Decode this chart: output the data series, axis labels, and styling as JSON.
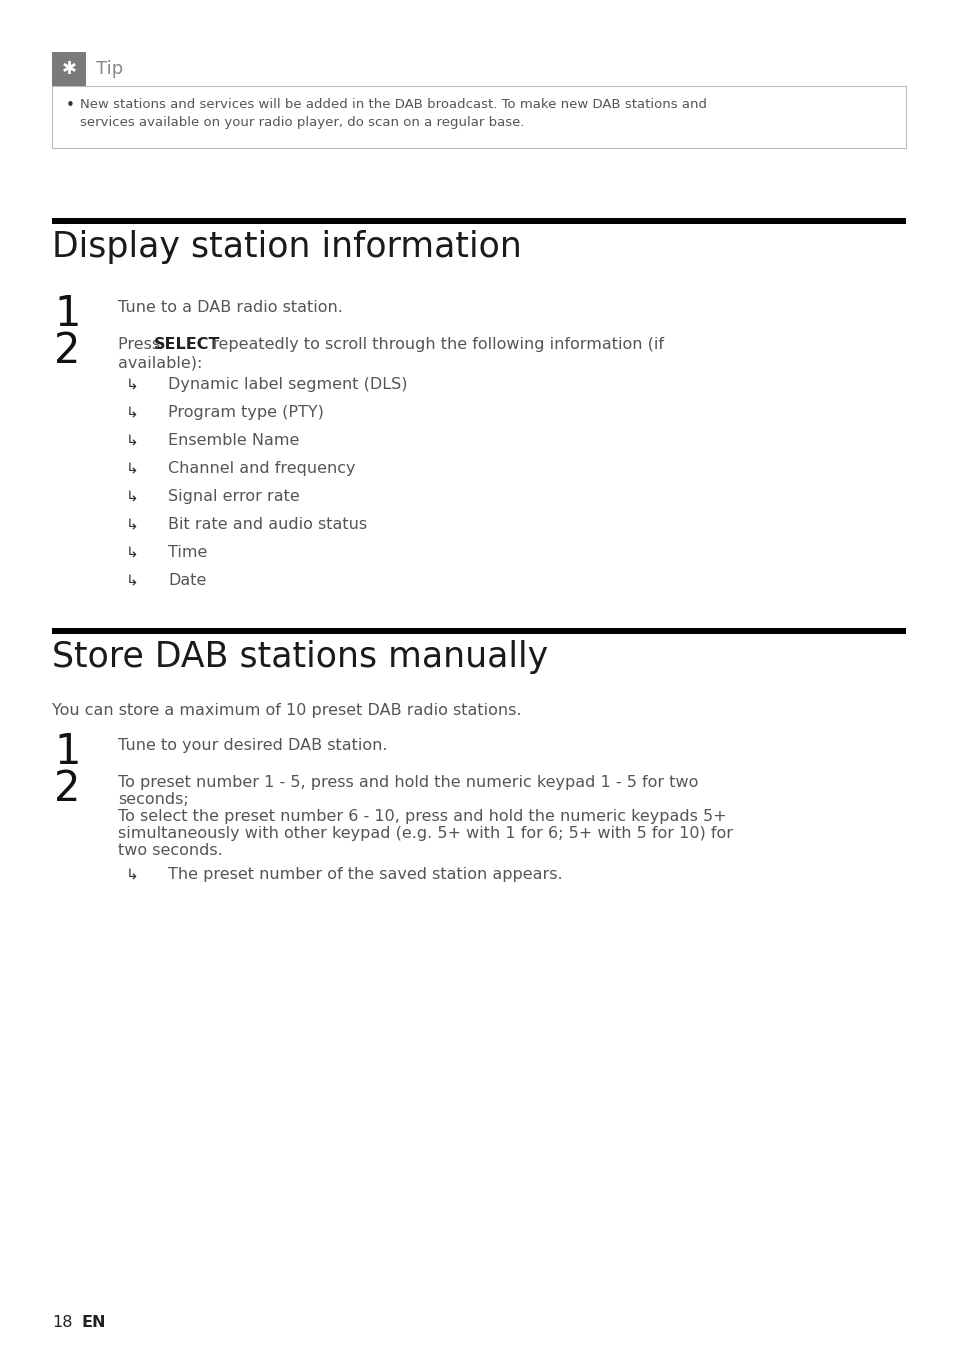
{
  "bg_color": "#ffffff",
  "tip_icon_bg": "#7a7a7a",
  "tip_border_color": "#bbbbbb",
  "tip_bullet": "New stations and services will be added in the DAB broadcast. To make new DAB stations and\nservices available on your radio player, do scan on a regular base.",
  "section1_title": "Display station information",
  "section1_step1": "Tune to a DAB radio station.",
  "section1_step2_line1_pre": "Press ",
  "section1_step2_bold": "SELECT",
  "section1_step2_line1_post": " repeatedly to scroll through the following information (if",
  "section1_step2_line2": "available):",
  "section1_bullets": [
    "Dynamic label segment (DLS)",
    "Program type (PTY)",
    "Ensemble Name",
    "Channel and frequency",
    "Signal error rate",
    "Bit rate and audio status",
    "Time",
    "Date"
  ],
  "section2_title": "Store DAB stations manually",
  "section2_intro": "You can store a maximum of 10 preset DAB radio stations.",
  "section2_step1": "Tune to your desired DAB station.",
  "section2_step2_line1": "To preset number 1 - 5, press and hold the numeric keypad 1 - 5 for two",
  "section2_step2_line2": "seconds;",
  "section2_step2_line3": "To select the preset number 6 - 10, press and hold the numeric keypads 5+",
  "section2_step2_line4": "simultaneously with other keypad (e.g. 5+ with 1 for 6; 5+ with 5 for 10) for",
  "section2_step2_line5": "two seconds.",
  "section2_result": "The preset number of the saved station appears.",
  "footer_page": "18",
  "footer_lang": "EN"
}
